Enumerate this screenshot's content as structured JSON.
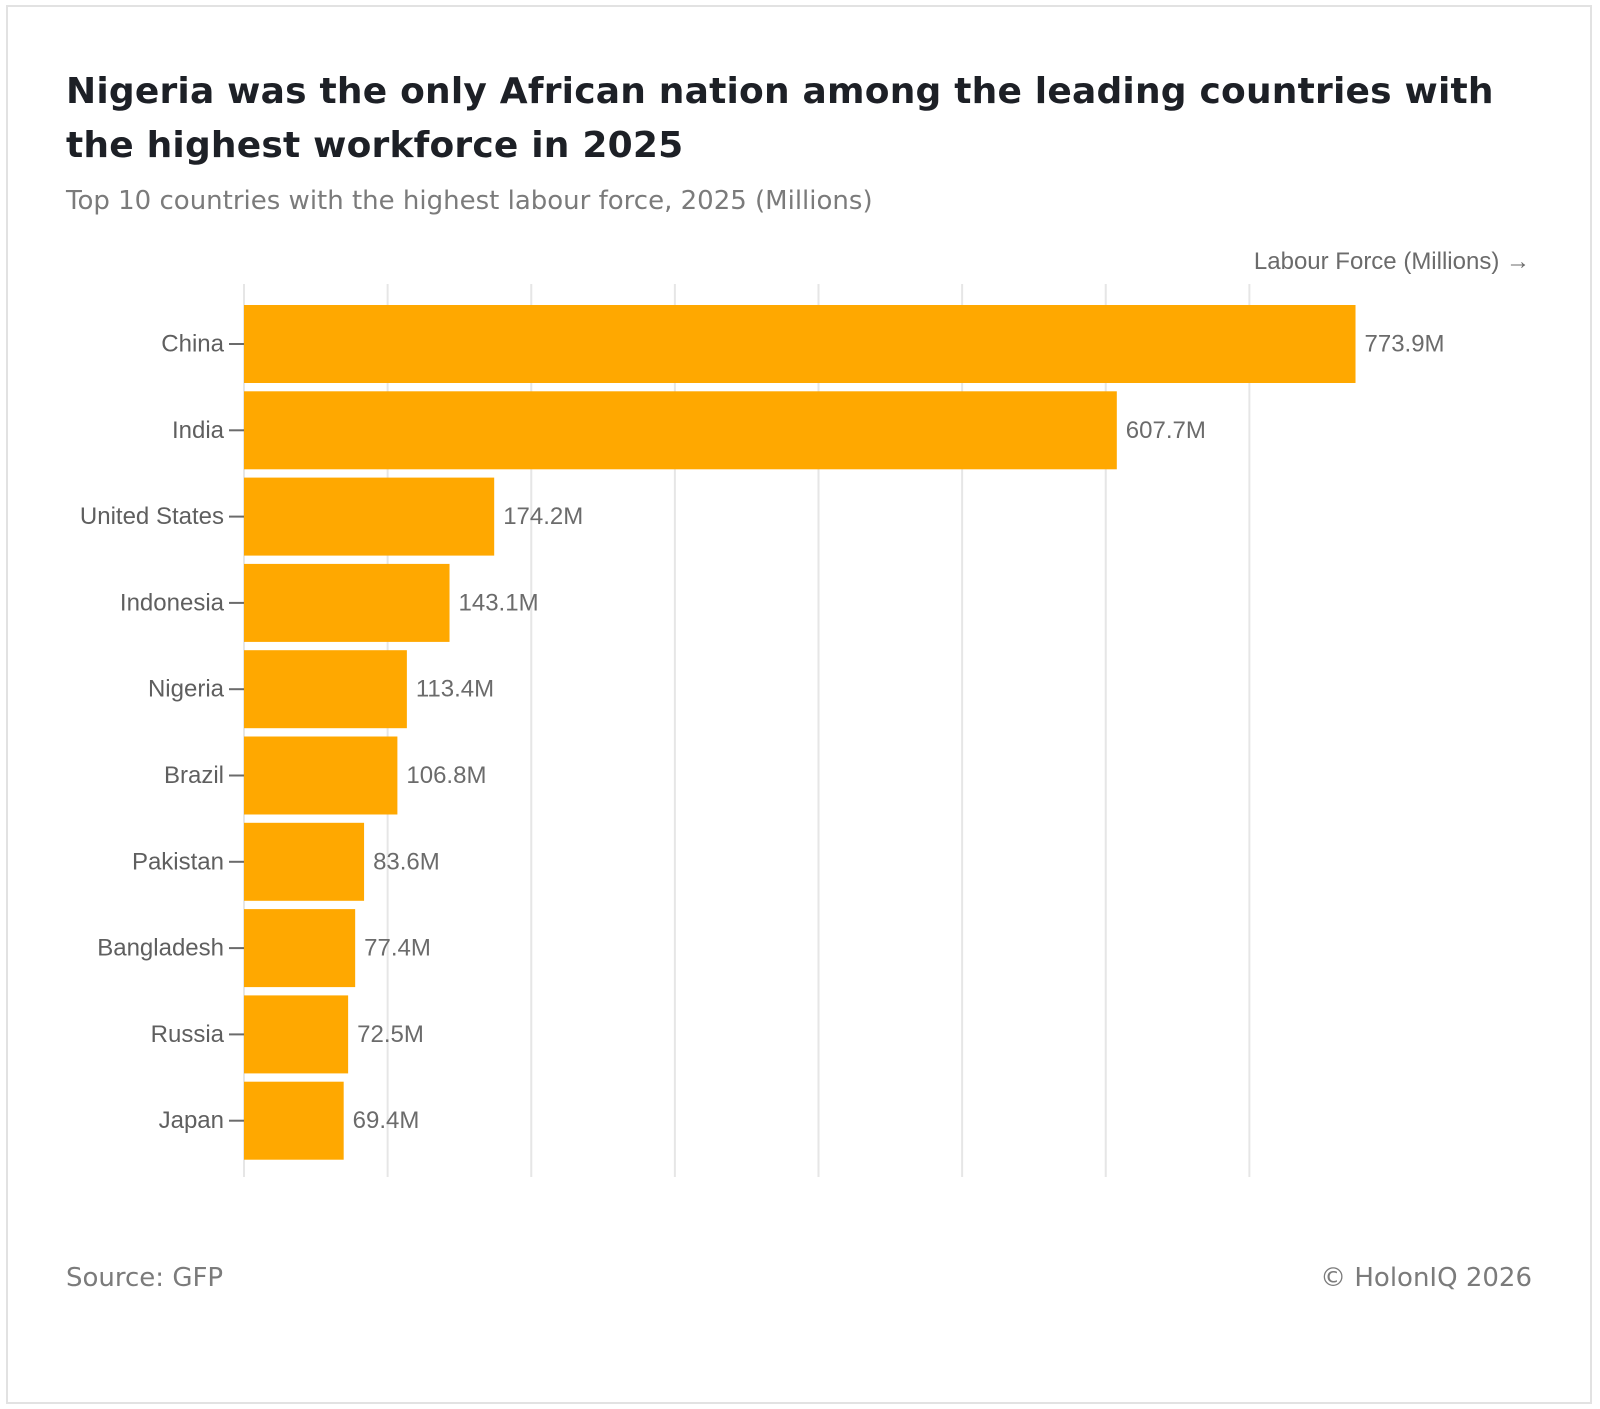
{
  "chart_data": {
    "type": "bar",
    "orientation": "horizontal",
    "title": "Nigeria was the only African nation among the leading countries with the highest workforce in 2025",
    "subtitle": "Top 10 countries with the highest labour force, 2025 (Millions)",
    "xlabel": "Labour Force (Millions) →",
    "ylabel": "",
    "categories": [
      "China",
      "India",
      "United States",
      "Indonesia",
      "Nigeria",
      "Brazil",
      "Pakistan",
      "Bangladesh",
      "Russia",
      "Japan"
    ],
    "values": [
      773.9,
      607.7,
      174.2,
      143.1,
      113.4,
      106.8,
      83.6,
      77.4,
      72.5,
      69.4
    ],
    "value_labels": [
      "773.9M",
      "607.7M",
      "174.2M",
      "143.1M",
      "113.4M",
      "106.8M",
      "83.6M",
      "77.4M",
      "72.5M",
      "69.4M"
    ],
    "xlim": [
      0,
      800
    ],
    "gridline_values": [
      100,
      200,
      300,
      400,
      500,
      600,
      700
    ],
    "grid": true,
    "bar_color": "#ffa800",
    "source": "Source: GFP",
    "credit": "© HolonIQ 2026"
  }
}
